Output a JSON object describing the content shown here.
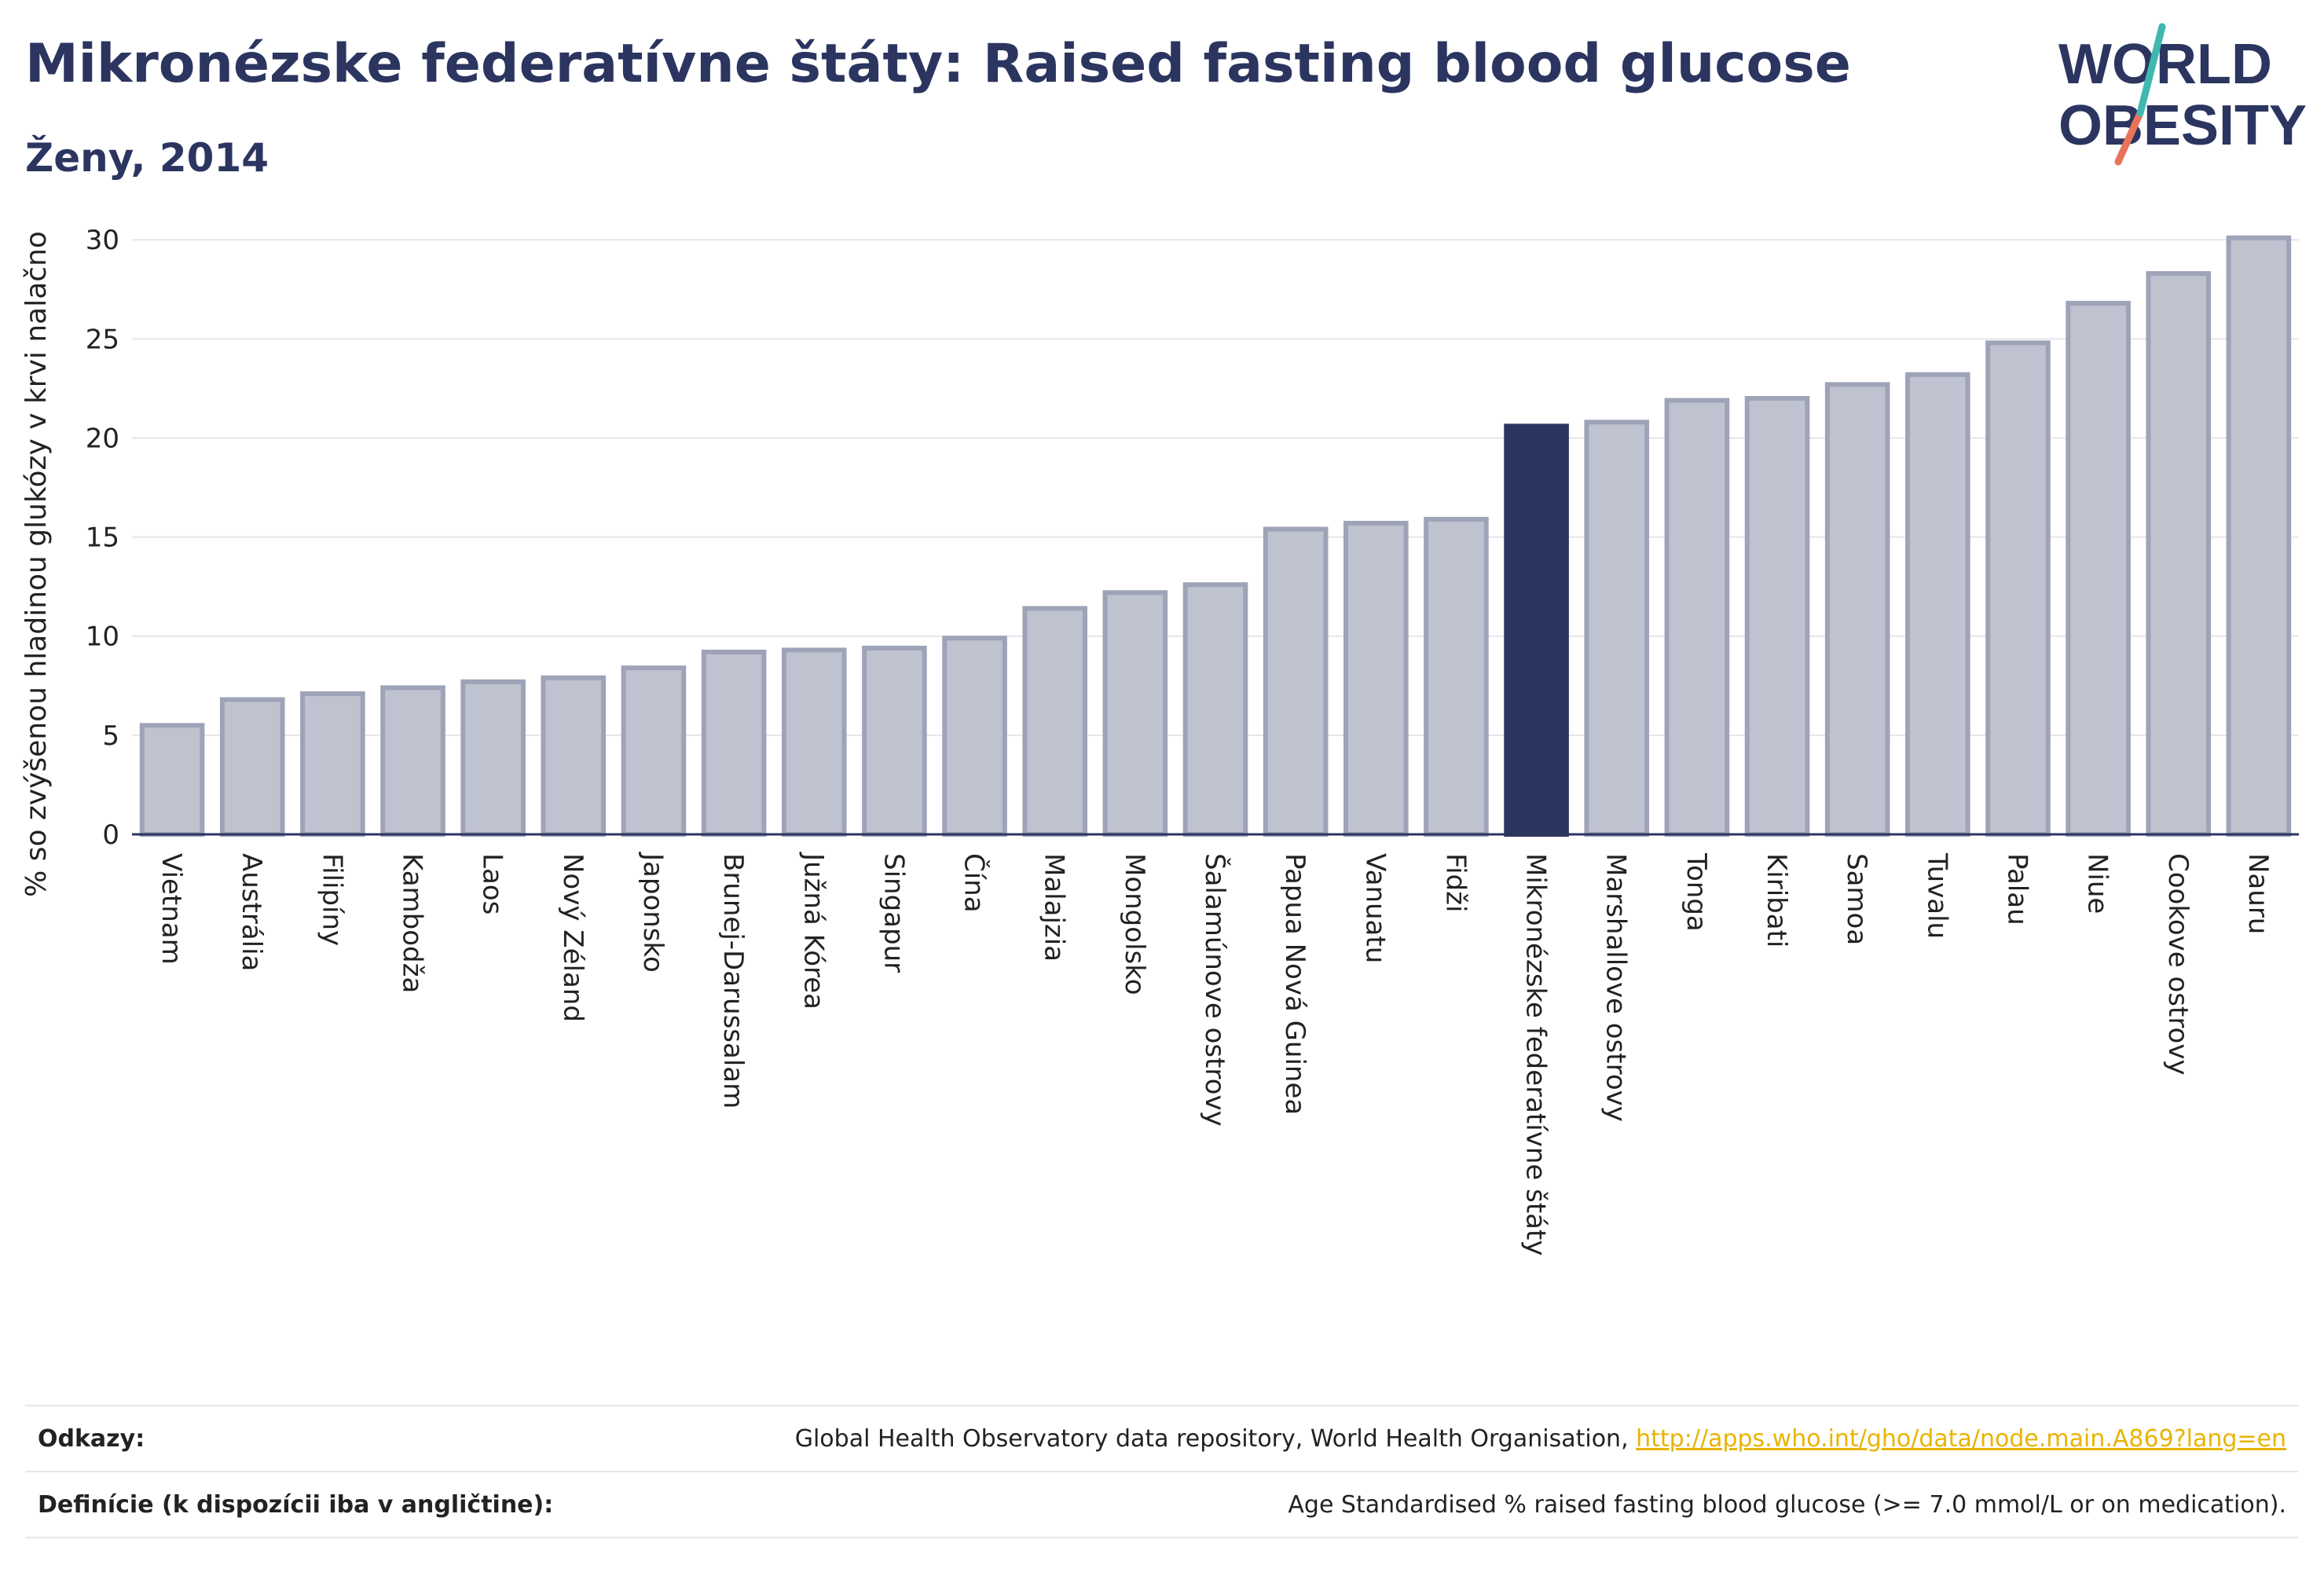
{
  "title": "Mikronézske federatívne štáty: Raised fasting blood glucose",
  "subtitle": "Ženy, 2014",
  "logo": {
    "line1": "WORLD",
    "line2": "OBESITY",
    "slash_colors": [
      "#3fb8b0",
      "#e8735a"
    ],
    "text_color": "#2b3560"
  },
  "colors": {
    "bar": "#bfc2cf",
    "bar_edge": "#9ea3b8",
    "highlight": "#2b3560",
    "link": "#e8b400"
  },
  "chart_data": {
    "type": "bar",
    "ylabel": "% so zvýšenou hladinou glukózy v krvi nalačno",
    "ylim": [
      0,
      31
    ],
    "yticks": [
      0,
      5,
      10,
      15,
      20,
      25,
      30
    ],
    "grid": true,
    "highlight": "Mikronézske federatívne štáty",
    "categories": [
      "Vietnam",
      "Austrália",
      "Filipíny",
      "Kambodža",
      "Laos",
      "Nový Zéland",
      "Japonsko",
      "Brunej-Darussalam",
      "Južná Kórea",
      "Singapur",
      "Čína",
      "Malajzia",
      "Mongolsko",
      "Šalamúnove ostrovy",
      "Papua Nová Guinea",
      "Vanuatu",
      "Fidži",
      "Mikronézske federatívne štáty",
      "Marshallove ostrovy",
      "Tonga",
      "Kiribati",
      "Samoa",
      "Tuvalu",
      "Palau",
      "Niue",
      "Cookove ostrovy",
      "Nauru"
    ],
    "values": [
      5.5,
      6.8,
      7.1,
      7.4,
      7.7,
      7.9,
      8.4,
      9.2,
      9.3,
      9.4,
      9.9,
      11.4,
      12.2,
      12.6,
      15.4,
      15.7,
      15.9,
      20.6,
      20.8,
      21.9,
      22.0,
      22.7,
      23.2,
      24.8,
      26.8,
      28.3,
      30.1
    ]
  },
  "footer": {
    "refs_label": "Odkazy:",
    "refs_text": "Global Health Observatory data repository, World Health Organisation, ",
    "refs_link": "http://apps.who.int/gho/data/node.main.A869?lang=en",
    "defs_label": "Definície (k dispozícii iba v angličtine):",
    "defs_text": "Age Standardised % raised fasting blood glucose (>= 7.0 mmol/L or on medication)."
  }
}
